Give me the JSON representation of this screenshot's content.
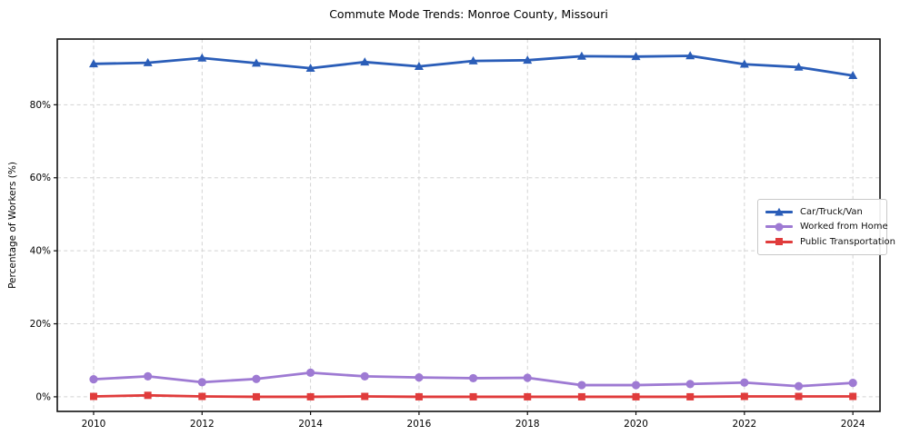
{
  "chart_data": {
    "type": "line",
    "title": "Commute Mode Trends: Monroe County, Missouri",
    "xlabel": "",
    "ylabel": "Percentage of Workers (%)",
    "x": [
      2010,
      2011,
      2012,
      2013,
      2014,
      2015,
      2016,
      2017,
      2018,
      2019,
      2020,
      2021,
      2022,
      2023,
      2024
    ],
    "series": [
      {
        "name": "Car/Truck/Van",
        "color": "#2a5db8",
        "marker": "triangle",
        "values": [
          91.2,
          91.5,
          92.8,
          91.4,
          90.0,
          91.7,
          90.5,
          92.0,
          92.2,
          93.3,
          93.2,
          93.4,
          91.1,
          90.3,
          88.0
        ]
      },
      {
        "name": "Worked from Home",
        "color": "#9e7ad3",
        "marker": "circle",
        "values": [
          4.8,
          5.6,
          4.0,
          4.9,
          6.6,
          5.6,
          5.3,
          5.1,
          5.2,
          3.2,
          3.2,
          3.5,
          3.9,
          2.9,
          3.8
        ]
      },
      {
        "name": "Public Transportation",
        "color": "#e03c3c",
        "marker": "square",
        "values": [
          0.1,
          0.4,
          0.1,
          0.0,
          0.0,
          0.1,
          0.0,
          0.0,
          0.0,
          0.0,
          0.0,
          0.0,
          0.1,
          0.1,
          0.1
        ]
      }
    ],
    "xticks": [
      2010,
      2012,
      2014,
      2016,
      2018,
      2020,
      2022,
      2024
    ],
    "xtick_labels": [
      "2010",
      "2012",
      "2014",
      "2016",
      "2018",
      "2020",
      "2022",
      "2024"
    ],
    "yticks": [
      0,
      20,
      40,
      60,
      80
    ],
    "ytick_labels": [
      "0%",
      "20%",
      "40%",
      "60%",
      "80%"
    ],
    "xlim": [
      2009.33,
      2024.5
    ],
    "ylim": [
      -4,
      98
    ],
    "grid": true,
    "legend_position": "center-right",
    "colors": {
      "grid": "#d3d3d3",
      "axis": "#111111",
      "tick_text": "#000000",
      "background": "#ffffff",
      "legend_border": "#c9c9c9"
    }
  }
}
